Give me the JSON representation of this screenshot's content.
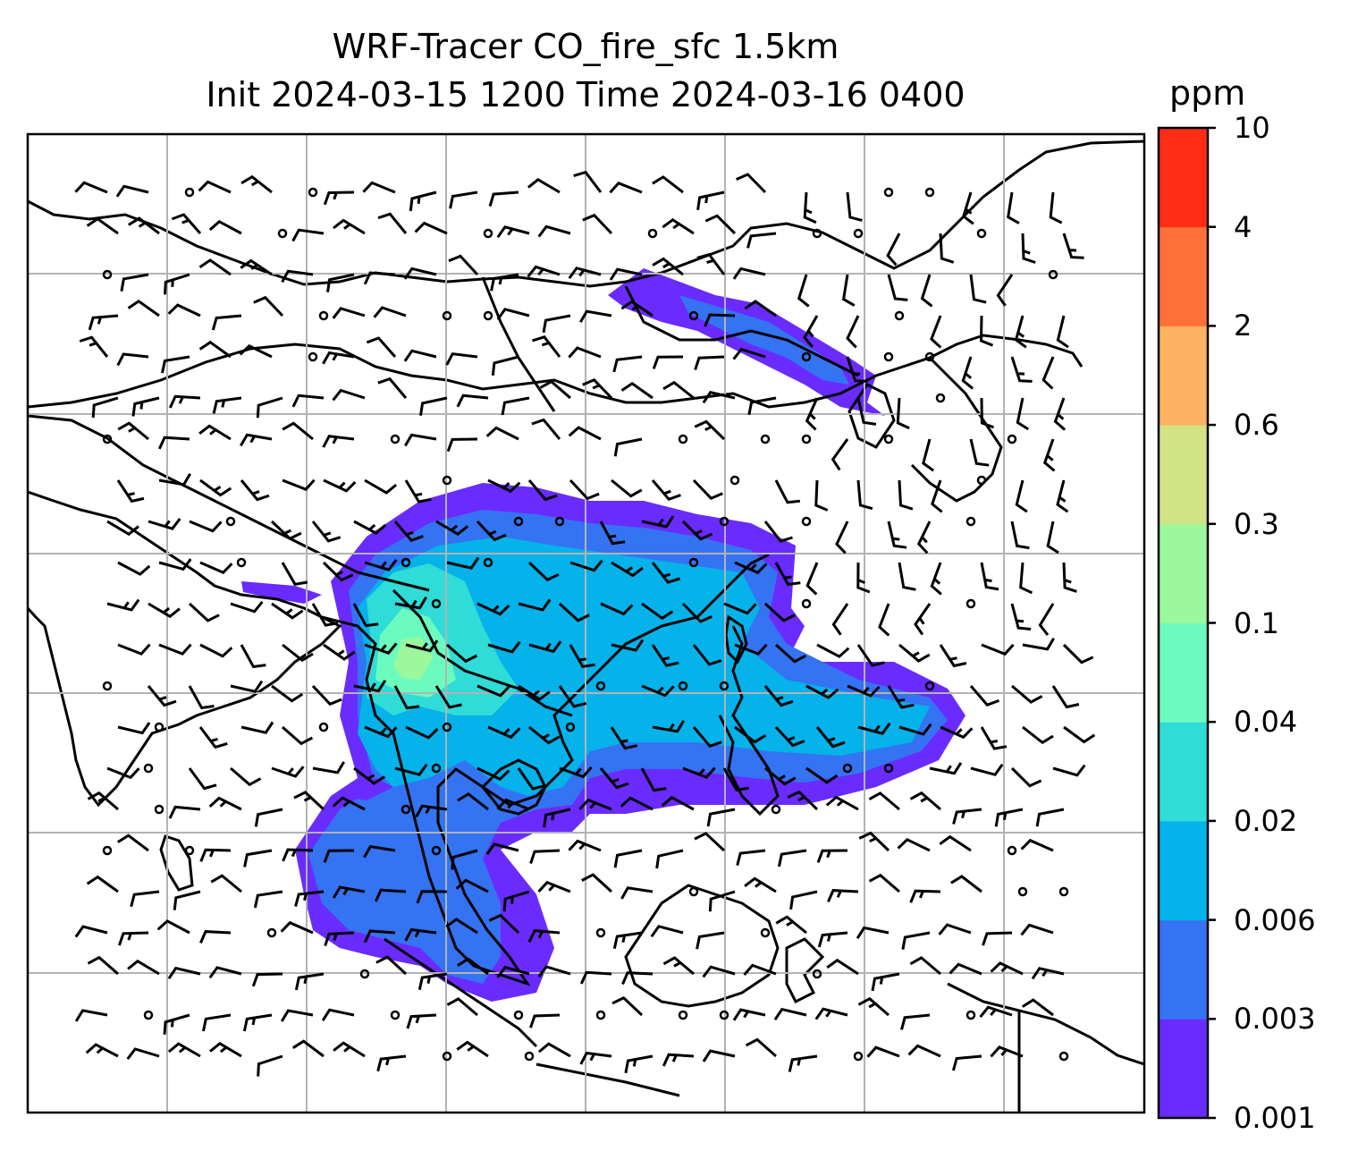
{
  "title_line1": "WRF-Tracer CO_fire_sfc 1.5km",
  "title_line2": "Init 2024-03-15 1200 Time 2024-03-16 0400",
  "colorbar": {
    "unit": "ppm",
    "levels": [
      "0.001",
      "0.003",
      "0.006",
      "0.02",
      "0.04",
      "0.1",
      "0.3",
      "0.6",
      "2",
      "4",
      "10"
    ],
    "colors": [
      "#6a2bff",
      "#3473f2",
      "#05b2ea",
      "#2fdcd7",
      "#6cfbbf",
      "#9bf89c",
      "#d1e385",
      "#fdb361",
      "#ff7138",
      "#ff2d15"
    ]
  },
  "map": {
    "gridlines": true,
    "overlay": "wind barbs",
    "field": "CO_fire_sfc"
  }
}
